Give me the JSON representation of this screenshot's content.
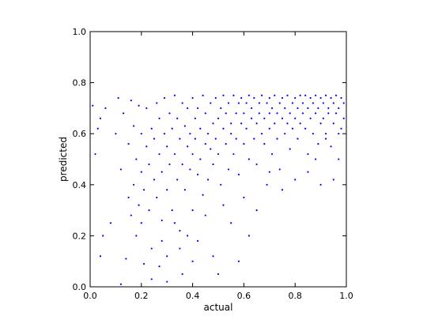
{
  "chart_data": {
    "type": "scatter",
    "xlabel": "actual",
    "ylabel": "predicted",
    "xlim": [
      0.0,
      1.0
    ],
    "ylim": [
      0.0,
      1.0
    ],
    "x_ticks": [
      "0.0",
      "0.2",
      "0.4",
      "0.6",
      "0.8",
      "1.0"
    ],
    "y_ticks": [
      "0.0",
      "0.2",
      "0.4",
      "0.6",
      "0.8",
      "1.0"
    ],
    "grid": false,
    "legend": "none",
    "marker_color": "#0000ff",
    "series": [
      {
        "points": [
          [
            0.01,
            0.71
          ],
          [
            0.02,
            0.52
          ],
          [
            0.03,
            0.62
          ],
          [
            0.04,
            0.66
          ],
          [
            0.05,
            0.2
          ],
          [
            0.04,
            0.12
          ],
          [
            0.06,
            0.7
          ],
          [
            0.08,
            0.25
          ],
          [
            0.1,
            0.6
          ],
          [
            0.11,
            0.74
          ],
          [
            0.12,
            0.01
          ],
          [
            0.12,
            0.46
          ],
          [
            0.13,
            0.68
          ],
          [
            0.14,
            0.11
          ],
          [
            0.15,
            0.35
          ],
          [
            0.15,
            0.56
          ],
          [
            0.16,
            0.73
          ],
          [
            0.16,
            0.28
          ],
          [
            0.17,
            0.4
          ],
          [
            0.17,
            0.63
          ],
          [
            0.18,
            0.2
          ],
          [
            0.18,
            0.5
          ],
          [
            0.19,
            0.32
          ],
          [
            0.19,
            0.71
          ],
          [
            0.2,
            0.45
          ],
          [
            0.2,
            0.25
          ],
          [
            0.2,
            0.6
          ],
          [
            0.21,
            0.09
          ],
          [
            0.21,
            0.38
          ],
          [
            0.22,
            0.55
          ],
          [
            0.22,
            0.7
          ],
          [
            0.23,
            0.3
          ],
          [
            0.23,
            0.48
          ],
          [
            0.24,
            0.62
          ],
          [
            0.24,
            0.15
          ],
          [
            0.25,
            0.42
          ],
          [
            0.25,
            0.58
          ],
          [
            0.26,
            0.72
          ],
          [
            0.26,
            0.35
          ],
          [
            0.27,
            0.52
          ],
          [
            0.27,
            0.66
          ],
          [
            0.28,
            0.26
          ],
          [
            0.28,
            0.45
          ],
          [
            0.29,
            0.6
          ],
          [
            0.29,
            0.74
          ],
          [
            0.3,
            0.38
          ],
          [
            0.3,
            0.55
          ],
          [
            0.3,
            0.12
          ],
          [
            0.31,
            0.68
          ],
          [
            0.31,
            0.48
          ],
          [
            0.32,
            0.3
          ],
          [
            0.32,
            0.62
          ],
          [
            0.33,
            0.75
          ],
          [
            0.33,
            0.52
          ],
          [
            0.34,
            0.42
          ],
          [
            0.34,
            0.66
          ],
          [
            0.35,
            0.58
          ],
          [
            0.35,
            0.22
          ],
          [
            0.36,
            0.72
          ],
          [
            0.36,
            0.48
          ],
          [
            0.37,
            0.63
          ],
          [
            0.37,
            0.38
          ],
          [
            0.38,
            0.55
          ],
          [
            0.38,
            0.7
          ],
          [
            0.39,
            0.46
          ],
          [
            0.39,
            0.6
          ],
          [
            0.4,
            0.74
          ],
          [
            0.4,
            0.52
          ],
          [
            0.4,
            0.3
          ],
          [
            0.41,
            0.66
          ],
          [
            0.41,
            0.58
          ],
          [
            0.42,
            0.44
          ],
          [
            0.42,
            0.7
          ],
          [
            0.43,
            0.62
          ],
          [
            0.43,
            0.5
          ],
          [
            0.44,
            0.75
          ],
          [
            0.44,
            0.36
          ],
          [
            0.45,
            0.56
          ],
          [
            0.45,
            0.68
          ],
          [
            0.46,
            0.6
          ],
          [
            0.46,
            0.42
          ],
          [
            0.47,
            0.72
          ],
          [
            0.47,
            0.54
          ],
          [
            0.48,
            0.64
          ],
          [
            0.48,
            0.48
          ],
          [
            0.49,
            0.74
          ],
          [
            0.49,
            0.58
          ],
          [
            0.5,
            0.66
          ],
          [
            0.5,
            0.52
          ],
          [
            0.5,
            0.05
          ],
          [
            0.51,
            0.7
          ],
          [
            0.51,
            0.4
          ],
          [
            0.52,
            0.62
          ],
          [
            0.52,
            0.75
          ],
          [
            0.53,
            0.56
          ],
          [
            0.53,
            0.68
          ],
          [
            0.54,
            0.46
          ],
          [
            0.54,
            0.72
          ],
          [
            0.55,
            0.6
          ],
          [
            0.55,
            0.64
          ],
          [
            0.56,
            0.75
          ],
          [
            0.56,
            0.52
          ],
          [
            0.57,
            0.68
          ],
          [
            0.57,
            0.58
          ],
          [
            0.58,
            0.72
          ],
          [
            0.58,
            0.44
          ],
          [
            0.59,
            0.64
          ],
          [
            0.59,
            0.74
          ],
          [
            0.6,
            0.56
          ],
          [
            0.6,
            0.68
          ],
          [
            0.6,
            0.35
          ],
          [
            0.61,
            0.72
          ],
          [
            0.61,
            0.62
          ],
          [
            0.62,
            0.75
          ],
          [
            0.62,
            0.5
          ],
          [
            0.63,
            0.66
          ],
          [
            0.63,
            0.7
          ],
          [
            0.64,
            0.58
          ],
          [
            0.64,
            0.74
          ],
          [
            0.65,
            0.64
          ],
          [
            0.65,
            0.48
          ],
          [
            0.66,
            0.72
          ],
          [
            0.66,
            0.68
          ],
          [
            0.67,
            0.6
          ],
          [
            0.67,
            0.75
          ],
          [
            0.68,
            0.66
          ],
          [
            0.68,
            0.56
          ],
          [
            0.69,
            0.72
          ],
          [
            0.69,
            0.4
          ],
          [
            0.7,
            0.68
          ],
          [
            0.7,
            0.74
          ],
          [
            0.7,
            0.62
          ],
          [
            0.71,
            0.7
          ],
          [
            0.71,
            0.52
          ],
          [
            0.72,
            0.75
          ],
          [
            0.72,
            0.64
          ],
          [
            0.73,
            0.68
          ],
          [
            0.73,
            0.58
          ],
          [
            0.74,
            0.72
          ],
          [
            0.74,
            0.46
          ],
          [
            0.75,
            0.66
          ],
          [
            0.75,
            0.74
          ],
          [
            0.76,
            0.7
          ],
          [
            0.76,
            0.6
          ],
          [
            0.77,
            0.75
          ],
          [
            0.77,
            0.64
          ],
          [
            0.78,
            0.68
          ],
          [
            0.78,
            0.54
          ],
          [
            0.79,
            0.72
          ],
          [
            0.79,
            0.62
          ],
          [
            0.8,
            0.74
          ],
          [
            0.8,
            0.66
          ],
          [
            0.8,
            0.42
          ],
          [
            0.81,
            0.7
          ],
          [
            0.81,
            0.58
          ],
          [
            0.82,
            0.75
          ],
          [
            0.82,
            0.64
          ],
          [
            0.83,
            0.72
          ],
          [
            0.83,
            0.68
          ],
          [
            0.84,
            0.62
          ],
          [
            0.84,
            0.75
          ],
          [
            0.85,
            0.7
          ],
          [
            0.85,
            0.52
          ],
          [
            0.86,
            0.74
          ],
          [
            0.86,
            0.66
          ],
          [
            0.87,
            0.72
          ],
          [
            0.87,
            0.6
          ],
          [
            0.88,
            0.75
          ],
          [
            0.88,
            0.68
          ],
          [
            0.89,
            0.7
          ],
          [
            0.89,
            0.56
          ],
          [
            0.9,
            0.74
          ],
          [
            0.9,
            0.64
          ],
          [
            0.9,
            0.4
          ],
          [
            0.91,
            0.72
          ],
          [
            0.91,
            0.66
          ],
          [
            0.92,
            0.75
          ],
          [
            0.92,
            0.6
          ],
          [
            0.93,
            0.7
          ],
          [
            0.93,
            0.68
          ],
          [
            0.94,
            0.74
          ],
          [
            0.94,
            0.55
          ],
          [
            0.95,
            0.72
          ],
          [
            0.95,
            0.64
          ],
          [
            0.96,
            0.75
          ],
          [
            0.96,
            0.68
          ],
          [
            0.97,
            0.7
          ],
          [
            0.97,
            0.5
          ],
          [
            0.98,
            0.74
          ],
          [
            0.98,
            0.62
          ],
          [
            0.99,
            0.72
          ],
          [
            0.99,
            0.66
          ],
          [
            0.33,
            0.25
          ],
          [
            0.27,
            0.08
          ],
          [
            0.24,
            0.03
          ],
          [
            0.35,
            0.15
          ],
          [
            0.42,
            0.18
          ],
          [
            0.55,
            0.25
          ],
          [
            0.65,
            0.3
          ],
          [
            0.75,
            0.38
          ],
          [
            0.85,
            0.45
          ],
          [
            0.95,
            0.42
          ],
          [
            0.58,
            0.1
          ],
          [
            0.45,
            0.28
          ],
          [
            0.52,
            0.32
          ],
          [
            0.38,
            0.2
          ],
          [
            0.3,
            0.02
          ],
          [
            0.48,
            0.12
          ],
          [
            0.62,
            0.2
          ],
          [
            0.7,
            0.45
          ],
          [
            0.88,
            0.5
          ],
          [
            0.92,
            0.58
          ],
          [
            0.97,
            0.6
          ],
          [
            0.4,
            0.1
          ],
          [
            0.36,
            0.05
          ],
          [
            0.28,
            0.18
          ]
        ]
      }
    ]
  }
}
